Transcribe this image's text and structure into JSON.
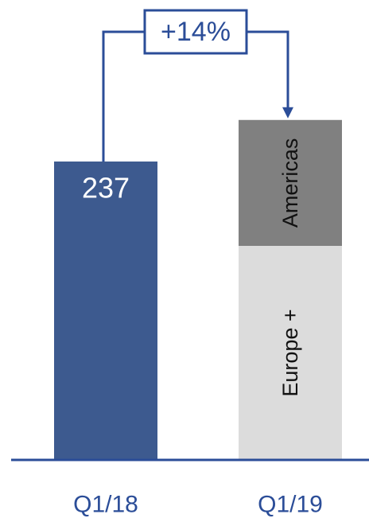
{
  "chart_data": {
    "type": "bar",
    "stacked": true,
    "categories": [
      "Q1/18",
      "Q1/19"
    ],
    "series": [
      {
        "name": "",
        "color": "#3d5a8f",
        "values": [
          237,
          null
        ]
      },
      {
        "name": "Europe +",
        "color": "#dcdcdc",
        "values": [
          null,
          170
        ]
      },
      {
        "name": "Americas",
        "color": "#808080",
        "values": [
          null,
          100
        ]
      }
    ],
    "totals": [
      237,
      270
    ],
    "data_labels": [
      "237",
      ""
    ],
    "annotation": {
      "text": "+14%",
      "from": "Q1/18",
      "to": "Q1/19"
    },
    "title": "",
    "xlabel": "",
    "ylabel": "",
    "ylim": [
      0,
      340
    ],
    "grid": false,
    "legend": "none",
    "colors": {
      "axis": "#2b4d98",
      "text_axis": "#2b4d98",
      "annotation": "#2b4d98"
    }
  }
}
